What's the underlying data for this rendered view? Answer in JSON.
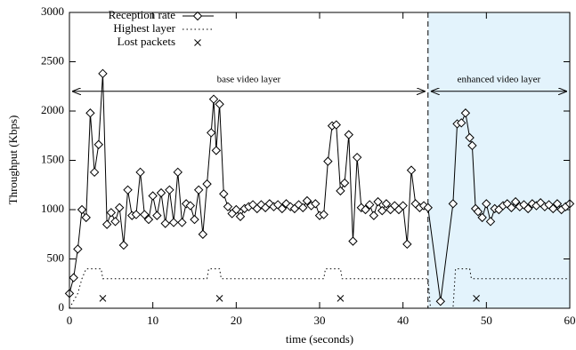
{
  "chart_data": {
    "type": "line",
    "xlabel": "time (seconds)",
    "ylabel": "Throughput (Kbps)",
    "xlim": [
      0,
      60
    ],
    "ylim": [
      0,
      3000
    ],
    "xticks": [
      0,
      10,
      20,
      30,
      40,
      50,
      60
    ],
    "yticks": [
      0,
      500,
      1000,
      1500,
      2000,
      2500,
      3000
    ],
    "shaded_region": {
      "xlim": [
        43,
        60
      ],
      "color": "#e3f3fc"
    },
    "vline": 43,
    "annotations": [
      {
        "text": "base video layer",
        "x": [
          0,
          43
        ],
        "y": 2200
      },
      {
        "text": "enhanced video layer",
        "x": [
          43,
          60
        ],
        "y": 2200
      }
    ],
    "series": [
      {
        "name": "Reception rate",
        "color": "#000000",
        "style": "line-diamond",
        "x": [
          0,
          0.5,
          1,
          1.5,
          2,
          2.5,
          3,
          3.5,
          4,
          4.5,
          5,
          5.5,
          6,
          6.5,
          7,
          7.5,
          8,
          8.5,
          9,
          9.5,
          10,
          10.5,
          11,
          11.5,
          12,
          12.5,
          13,
          13.5,
          14,
          14.5,
          15,
          15.5,
          16,
          16.5,
          17,
          17.3,
          17.6,
          18,
          18.5,
          19,
          19.5,
          20,
          20.5,
          21,
          21.5,
          22,
          22.5,
          23,
          23.5,
          24,
          24.5,
          25,
          25.5,
          26,
          26.5,
          27,
          27.5,
          28,
          28.5,
          29,
          29.5,
          30,
          30.5,
          31,
          31.5,
          32,
          32.5,
          33,
          33.5,
          34,
          34.5,
          35,
          35.5,
          36,
          36.5,
          37,
          37.5,
          38,
          38.5,
          39,
          39.5,
          40,
          40.5,
          41,
          41.5,
          42,
          42.5,
          43,
          44.5,
          46,
          46.5,
          47,
          47.5,
          48,
          48.3,
          48.7,
          49,
          49.5,
          50,
          50.5,
          51,
          51.5,
          52,
          52.5,
          53,
          53.5,
          54,
          54.5,
          55,
          55.5,
          56,
          56.5,
          57,
          57.5,
          58,
          58.5,
          59,
          59.5,
          60
        ],
        "values": [
          150,
          310,
          600,
          1000,
          920,
          1980,
          1380,
          1660,
          2380,
          850,
          970,
          880,
          1020,
          640,
          1200,
          940,
          950,
          1380,
          950,
          900,
          1140,
          940,
          1170,
          860,
          1200,
          870,
          1380,
          870,
          1060,
          1040,
          900,
          1200,
          750,
          1260,
          1780,
          2120,
          1600,
          2070,
          1160,
          1030,
          960,
          1000,
          930,
          1010,
          1030,
          1050,
          1010,
          1050,
          1020,
          1060,
          1030,
          1050,
          1010,
          1060,
          1030,
          1010,
          1050,
          1020,
          1090,
          1040,
          1060,
          940,
          950,
          1490,
          1850,
          1860,
          1190,
          1270,
          1760,
          680,
          1530,
          1020,
          1000,
          1050,
          940,
          1080,
          990,
          1060,
          1000,
          1040,
          1000,
          1040,
          650,
          1400,
          1060,
          1020,
          1040,
          1020,
          70,
          1060,
          1870,
          1880,
          1980,
          1730,
          1650,
          1010,
          980,
          920,
          1060,
          880,
          1010,
          1000,
          1040,
          1060,
          1020,
          1080,
          1030,
          1050,
          1010,
          1060,
          1040,
          1070,
          1030,
          1050,
          1010,
          1060,
          1000,
          1030,
          1060
        ]
      },
      {
        "name": "Highest layer",
        "color": "#000000",
        "style": "dotted",
        "x": [
          0,
          1,
          1.5,
          2,
          3.8,
          4,
          16.5,
          16.7,
          18,
          18.2,
          30.5,
          30.7,
          32.5,
          32.7,
          43,
          43.3,
          46,
          46.3,
          48,
          48.2,
          60
        ],
        "values": [
          0,
          150,
          300,
          400,
          400,
          300,
          300,
          400,
          400,
          300,
          300,
          400,
          400,
          300,
          300,
          0,
          0,
          400,
          400,
          300,
          300
        ]
      },
      {
        "name": "Lost packets",
        "color": "#000000",
        "style": "cross",
        "x": [
          4,
          18,
          32.5,
          48.8
        ],
        "values": [
          100,
          100,
          100,
          100
        ]
      }
    ]
  }
}
